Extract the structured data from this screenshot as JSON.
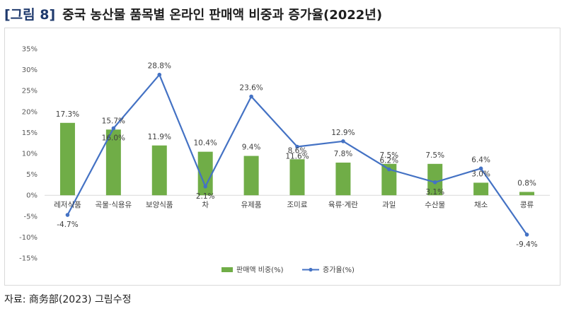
{
  "figure": {
    "label": "[그림 8]",
    "title": "중국 농산물 품목별 온라인 판매액 비중과 증가율(2022년)"
  },
  "source": "자료: 商务部(2023) 그림수정",
  "colors": {
    "bar": "#70ad47",
    "line": "#4472c4",
    "title_label": "#1f3a6d"
  },
  "chart_data": {
    "type": "bar",
    "categories": [
      "레저식품",
      "곡물·식용유",
      "보양식품",
      "차",
      "유제품",
      "조미료",
      "육류·계란",
      "과일",
      "수산물",
      "채소",
      "콩류"
    ],
    "series": [
      {
        "name": "판매액 비중(%)",
        "type": "bar",
        "values": [
          17.3,
          15.7,
          11.9,
          10.4,
          9.4,
          8.6,
          7.8,
          7.5,
          7.5,
          3.0,
          0.8
        ],
        "labels": [
          "17.3%",
          "15.7%",
          "11.9%",
          "10.4%",
          "9.4%",
          "8.6%",
          "7.8%",
          "7.5%",
          "7.5%",
          "3.0%",
          "0.8%"
        ]
      },
      {
        "name": "증가율(%)",
        "type": "line",
        "values": [
          -4.7,
          16.0,
          28.8,
          2.1,
          23.6,
          11.6,
          12.9,
          6.2,
          3.1,
          6.4,
          -9.4
        ],
        "labels": [
          "-4.7%",
          "16.0%",
          "28.8%",
          "2.1%",
          "23.6%",
          "11.6%",
          "12.9%",
          "6.2%",
          "3.1%",
          "6.4%",
          "-9.4%"
        ]
      }
    ],
    "yticks": [
      "35%",
      "30%",
      "25%",
      "20%",
      "15%",
      "10%",
      "5%",
      "0%",
      "-5%",
      "-10%",
      "-15%"
    ],
    "ylim": [
      -15,
      35
    ],
    "grid": false,
    "legend": "bottom"
  }
}
